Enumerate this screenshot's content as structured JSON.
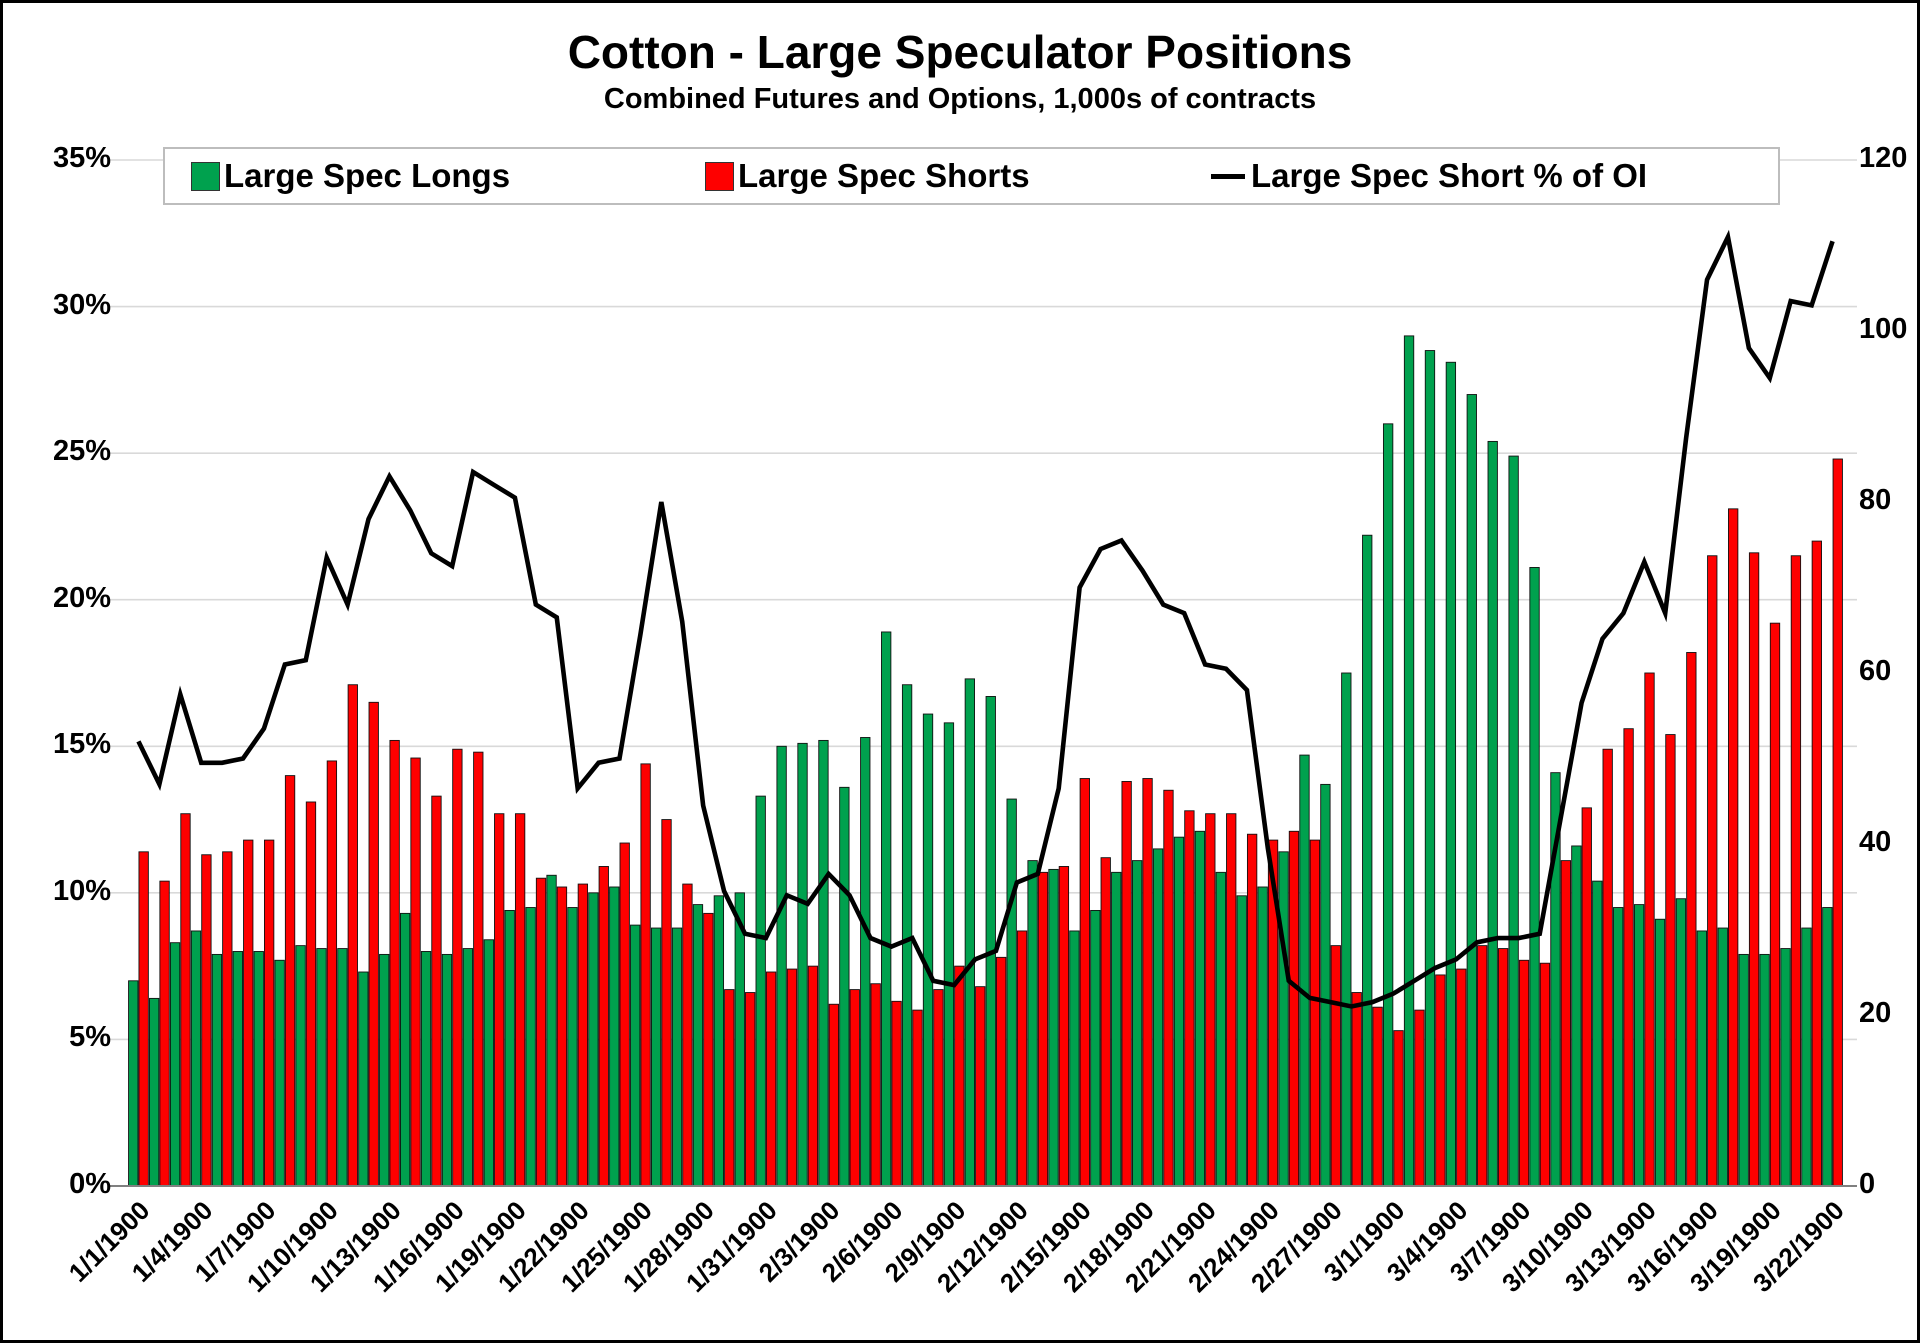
{
  "title": "Cotton - Large Speculator Positions",
  "subtitle": "Combined Futures and Options, 1,000s of contracts",
  "legend": {
    "longs_label": "Large Spec Longs",
    "shorts_label": "Large Spec Shorts",
    "line_label": "Large Spec Short % of OI"
  },
  "colors": {
    "longs": "#00A14E",
    "shorts": "#FE0000",
    "line": "#000000",
    "grid": "#d9d9d9",
    "axis_line": "#808080",
    "bar_stroke": "#111111"
  },
  "chart_data": {
    "type": "bar+line combo (clustered bars on left % axis, line on right axis)",
    "title": "Cotton - Large Speculator Positions",
    "subtitle": "Combined Futures and Options, 1,000s of contracts",
    "grid": true,
    "legend_position": "top",
    "left_axis": {
      "min": 0,
      "max": 35,
      "step": 5,
      "format": "percent",
      "ticks": [
        "0%",
        "5%",
        "10%",
        "15%",
        "20%",
        "25%",
        "30%",
        "35%"
      ]
    },
    "right_axis": {
      "min": 0,
      "max": 120,
      "step": 20,
      "ticks": [
        "0",
        "20",
        "40",
        "60",
        "80",
        "100",
        "120"
      ]
    },
    "x_label_every": 3,
    "categories": [
      "1/1/1900",
      "1/2/1900",
      "1/3/1900",
      "1/4/1900",
      "1/5/1900",
      "1/6/1900",
      "1/7/1900",
      "1/8/1900",
      "1/9/1900",
      "1/10/1900",
      "1/11/1900",
      "1/12/1900",
      "1/13/1900",
      "1/14/1900",
      "1/15/1900",
      "1/16/1900",
      "1/17/1900",
      "1/18/1900",
      "1/19/1900",
      "1/20/1900",
      "1/21/1900",
      "1/22/1900",
      "1/23/1900",
      "1/24/1900",
      "1/25/1900",
      "1/26/1900",
      "1/27/1900",
      "1/28/1900",
      "1/29/1900",
      "1/30/1900",
      "1/31/1900",
      "2/1/1900",
      "2/2/1900",
      "2/3/1900",
      "2/4/1900",
      "2/5/1900",
      "2/6/1900",
      "2/7/1900",
      "2/8/1900",
      "2/9/1900",
      "2/10/1900",
      "2/11/1900",
      "2/12/1900",
      "2/13/1900",
      "2/14/1900",
      "2/15/1900",
      "2/16/1900",
      "2/17/1900",
      "2/18/1900",
      "2/19/1900",
      "2/20/1900",
      "2/21/1900",
      "2/22/1900",
      "2/23/1900",
      "2/24/1900",
      "2/25/1900",
      "2/26/1900",
      "2/27/1900",
      "2/28/1900",
      "2/29/1900",
      "3/1/1900",
      "3/2/1900",
      "3/3/1900",
      "3/4/1900",
      "3/5/1900",
      "3/6/1900",
      "3/7/1900",
      "3/8/1900",
      "3/9/1900",
      "3/10/1900",
      "3/11/1900",
      "3/12/1900",
      "3/13/1900",
      "3/14/1900",
      "3/15/1900",
      "3/16/1900",
      "3/17/1900",
      "3/18/1900",
      "3/19/1900",
      "3/20/1900",
      "3/21/1900",
      "3/22/1900"
    ],
    "series": [
      {
        "name": "Large Spec Longs",
        "type": "bar",
        "axis": "left",
        "unit": "%",
        "values": [
          7.0,
          6.4,
          8.3,
          8.7,
          7.9,
          8.0,
          8.0,
          7.7,
          8.2,
          8.1,
          8.1,
          7.3,
          7.9,
          9.3,
          8.0,
          7.9,
          8.1,
          8.4,
          9.4,
          9.5,
          10.6,
          9.5,
          10.0,
          10.2,
          8.9,
          8.8,
          8.8,
          9.6,
          9.9,
          10.0,
          13.3,
          15.0,
          15.1,
          15.2,
          13.6,
          15.3,
          18.9,
          17.1,
          16.1,
          15.8,
          17.3,
          16.7,
          13.2,
          11.1,
          10.8,
          8.7,
          9.4,
          10.7,
          11.1,
          11.5,
          11.9,
          12.1,
          10.7,
          9.9,
          10.2,
          11.4,
          14.7,
          13.7,
          17.5,
          22.2,
          26.0,
          29.0,
          28.5,
          28.1,
          27.0,
          25.4,
          24.9,
          21.1,
          14.1,
          11.6,
          10.4,
          9.5,
          9.6,
          9.1,
          9.8,
          8.7,
          8.8,
          7.9,
          7.9,
          8.1,
          8.8,
          9.5
        ]
      },
      {
        "name": "Large Spec Shorts",
        "type": "bar",
        "axis": "left",
        "unit": "%",
        "values": [
          11.4,
          10.4,
          12.7,
          11.3,
          11.4,
          11.8,
          11.8,
          14.0,
          13.1,
          14.5,
          17.1,
          16.5,
          15.2,
          14.6,
          13.3,
          14.9,
          14.8,
          12.7,
          12.7,
          10.5,
          10.2,
          10.3,
          10.9,
          11.7,
          14.4,
          12.5,
          10.3,
          9.3,
          6.7,
          6.6,
          7.3,
          7.4,
          7.5,
          6.2,
          6.7,
          6.9,
          6.3,
          6.0,
          6.7,
          7.5,
          6.8,
          7.8,
          8.7,
          10.7,
          10.9,
          13.9,
          11.2,
          13.8,
          13.9,
          13.5,
          12.8,
          12.7,
          12.7,
          12.0,
          11.8,
          12.1,
          11.8,
          8.2,
          6.6,
          6.1,
          5.3,
          6.0,
          7.2,
          7.4,
          8.2,
          8.1,
          7.7,
          7.6,
          11.1,
          12.9,
          14.9,
          15.6,
          17.5,
          15.4,
          18.2,
          21.5,
          23.1,
          21.6,
          19.2,
          21.5,
          22.0,
          24.8
        ]
      },
      {
        "name": "Large Spec Short % of OI",
        "type": "line",
        "axis": "right",
        "values": [
          52,
          47,
          57.5,
          49.5,
          49.5,
          50,
          53.5,
          61,
          61.5,
          73.5,
          68,
          78,
          83,
          79,
          74,
          72.5,
          83.5,
          82,
          80.5,
          68,
          66.5,
          46.5,
          49.5,
          50,
          64.5,
          80,
          66,
          44.5,
          34.5,
          29.5,
          29,
          34,
          33,
          36.5,
          34,
          29,
          28,
          29,
          24,
          23.5,
          26.5,
          27.5,
          35.5,
          36.5,
          46.5,
          70,
          74.5,
          75.5,
          72,
          68,
          67,
          61,
          60.5,
          58,
          39.5,
          24,
          22,
          21.5,
          21,
          21.5,
          22.5,
          24,
          25.5,
          26.5,
          28.5,
          29,
          29,
          29.5,
          43,
          56.5,
          64,
          67,
          73,
          67,
          87.5,
          106,
          111,
          98,
          94.5,
          103.5,
          103,
          110.5
        ]
      }
    ]
  }
}
